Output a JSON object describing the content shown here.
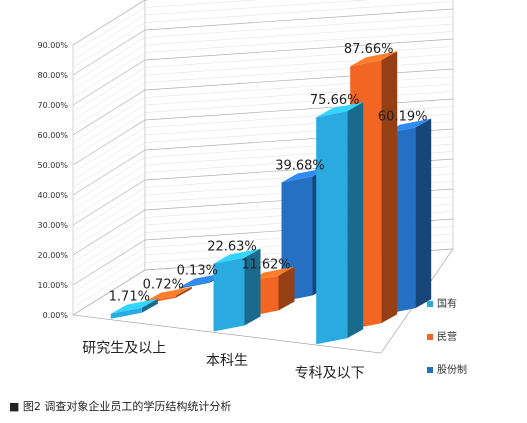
{
  "chart_data": {
    "type": "bar",
    "categories": [
      "研究生及以上",
      "本科生",
      "专科及以下"
    ],
    "series": [
      {
        "name": "国有",
        "values": [
          1.71,
          22.63,
          75.66
        ],
        "labels": [
          "1.71%",
          "22.63%",
          "75.66%"
        ],
        "color": "#29abe2"
      },
      {
        "name": "民营",
        "values": [
          0.72,
          11.62,
          87.66
        ],
        "labels": [
          "0.72%",
          "11.62%",
          "87.66%"
        ],
        "color": "#f26522"
      },
      {
        "name": "股份制",
        "values": [
          0.13,
          39.68,
          60.19
        ],
        "labels": [
          "0.13%",
          "39.68%",
          "60.19%"
        ],
        "color": "#2670c4"
      }
    ],
    "yticks": [
      "0.00%",
      "10.00%",
      "20.00%",
      "30.00%",
      "40.00%",
      "50.00%",
      "60.00%",
      "70.00%",
      "80.00%",
      "90.00%"
    ],
    "ylim": [
      0,
      90
    ],
    "grid": true,
    "legend_position": "right",
    "style": "3d-column"
  },
  "caption": {
    "marker": "■",
    "text": "图2  调查对象企业员工的学历结构统计分析"
  }
}
